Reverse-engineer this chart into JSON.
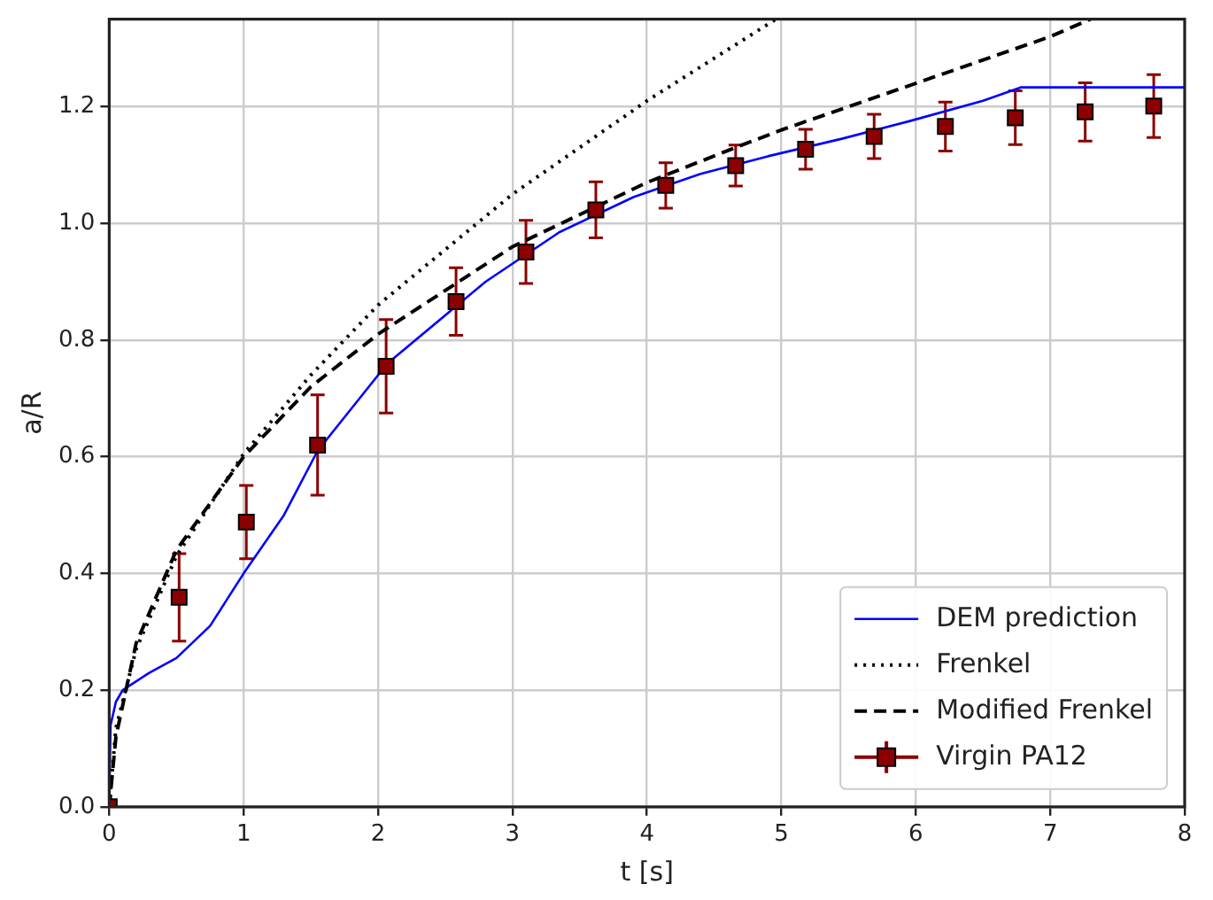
{
  "chart_data": {
    "type": "line",
    "xlabel": "t [s]",
    "ylabel": "a/R",
    "xlim": [
      0,
      8
    ],
    "ylim": [
      0,
      1.35
    ],
    "xticks": [
      0,
      1,
      2,
      3,
      4,
      5,
      6,
      7,
      8
    ],
    "yticks": [
      {
        "value": 0,
        "label": "0.0"
      },
      {
        "value": 0.2,
        "label": "0.2"
      },
      {
        "value": 0.4,
        "label": "0.4"
      },
      {
        "value": 0.6,
        "label": "0.6"
      },
      {
        "value": 0.8,
        "label": "0.8"
      },
      {
        "value": 1,
        "label": "1.0"
      },
      {
        "value": 1.2,
        "label": "1.2"
      }
    ],
    "grid": true,
    "legend": "bottom right",
    "series": [
      {
        "name": "DEM prediction",
        "type": "line",
        "color": "#0000ff",
        "line_style": "solid",
        "x": [
          0,
          0.01,
          0.05,
          0.1,
          0.3,
          0.5,
          0.75,
          1,
          1.3,
          1.55,
          2.07,
          2.8,
          3.35,
          3.9,
          4.4,
          4.9,
          5.45,
          5.95,
          6.5,
          6.78,
          8
        ],
        "values": [
          0,
          0.14,
          0.18,
          0.2,
          0.23,
          0.255,
          0.31,
          0.4,
          0.5,
          0.61,
          0.76,
          0.9,
          0.985,
          1.045,
          1.085,
          1.115,
          1.145,
          1.175,
          1.21,
          1.233,
          1.233
        ]
      },
      {
        "name": "Frenkel",
        "type": "line",
        "color": "#000000",
        "line_style": "dotted",
        "x": [
          0,
          0.05,
          0.2,
          0.5,
          1,
          1.5,
          2,
          3,
          4,
          4.96
        ],
        "values": [
          0,
          0.135,
          0.27,
          0.43,
          0.605,
          0.74,
          0.86,
          1.05,
          1.21,
          1.35
        ]
      },
      {
        "name": "Modified Frenkel",
        "type": "line",
        "color": "#000000",
        "line_style": "dashed",
        "x": [
          0,
          0.05,
          0.2,
          0.5,
          1,
          1.5,
          2,
          3,
          4,
          4.66,
          5,
          6,
          7,
          7.3
        ],
        "values": [
          0,
          0.12,
          0.28,
          0.44,
          0.6,
          0.72,
          0.81,
          0.96,
          1.07,
          1.13,
          1.16,
          1.24,
          1.32,
          1.35
        ]
      },
      {
        "name": "Virgin PA12",
        "type": "scatter",
        "marker": "square",
        "color": "#8b0000",
        "x": [
          0,
          0.52,
          1.02,
          1.55,
          2.06,
          2.58,
          3.1,
          3.62,
          4.14,
          4.66,
          5.18,
          5.69,
          6.22,
          6.74,
          7.26,
          7.77
        ],
        "values": [
          0,
          0.359,
          0.488,
          0.62,
          0.755,
          0.866,
          0.951,
          1.023,
          1.065,
          1.099,
          1.127,
          1.149,
          1.166,
          1.181,
          1.191,
          1.201
        ],
        "errors": [
          null,
          0.075,
          0.063,
          0.086,
          0.08,
          0.058,
          0.054,
          0.048,
          0.039,
          0.035,
          0.034,
          0.038,
          0.042,
          0.046,
          0.05,
          0.054
        ]
      }
    ]
  }
}
